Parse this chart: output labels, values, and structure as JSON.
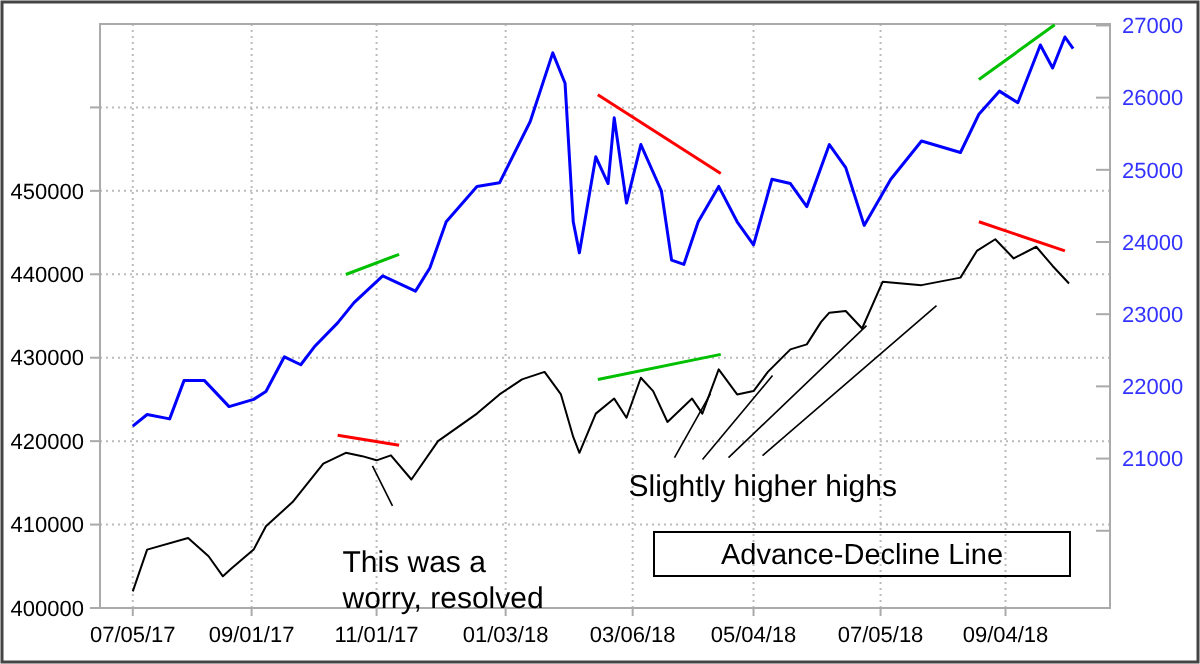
{
  "chart_data": {
    "type": "line",
    "xlim": [
      "2017-06-19",
      "2018-10-25"
    ],
    "xticks": [
      {
        "value": "2017-07-05",
        "label": "07/05/17"
      },
      {
        "value": "2017-09-01",
        "label": "09/01/17"
      },
      {
        "value": "2017-11-01",
        "label": "11/01/17"
      },
      {
        "value": "2018-01-03",
        "label": "01/03/18"
      },
      {
        "value": "2018-03-06",
        "label": "03/06/18"
      },
      {
        "value": "2018-05-04",
        "label": "05/04/18"
      },
      {
        "value": "2018-07-05",
        "label": "07/05/18"
      },
      {
        "value": "2018-09-04",
        "label": "09/04/18"
      }
    ],
    "ylim": [
      400000,
      470000
    ],
    "yticks": [
      400000,
      410000,
      420000,
      430000,
      440000,
      450000,
      {
        "value": 460000,
        "label": null
      }
    ],
    "y2lim": [
      18930,
      27020
    ],
    "y2ticks": [
      {
        "value": 20000,
        "label": null
      },
      21000,
      22000,
      23000,
      24000,
      25000,
      26000,
      27000
    ],
    "grid": true,
    "legend": "bottom right",
    "marker": "none",
    "line_style": "solid",
    "annotations": [
      {
        "text": "This was a\nworry, resolved",
        "x": "2017-10-30",
        "y": 418000
      },
      {
        "text": "Slightly higher highs",
        "x": "2018-04-13",
        "y": 425700
      }
    ],
    "series": [
      {
        "name": "Advance-Decline Line",
        "color": "#000000",
        "axis": "y",
        "x": [
          "2017-07-05",
          "2017-07-12",
          "2017-08-01",
          "2017-08-11",
          "2017-08-18",
          "2017-08-22",
          "2017-09-02",
          "2017-09-08",
          "2017-09-21",
          "2017-10-06",
          "2017-10-17",
          "2017-10-25",
          "2017-11-01",
          "2017-11-08",
          "2017-11-18",
          "2017-12-01",
          "2017-12-20",
          "2017-12-31",
          "2018-01-11",
          "2018-01-22",
          "2018-01-30",
          "2018-02-05",
          "2018-02-08",
          "2018-02-16",
          "2018-02-25",
          "2018-03-03",
          "2018-03-10",
          "2018-03-16",
          "2018-03-23",
          "2018-04-04",
          "2018-04-09",
          "2018-04-17",
          "2018-04-26",
          "2018-05-04",
          "2018-05-11",
          "2018-05-22",
          "2018-05-30",
          "2018-06-06",
          "2018-06-10",
          "2018-06-18",
          "2018-06-26",
          "2018-07-06",
          "2018-07-25",
          "2018-08-13",
          "2018-08-21",
          "2018-08-30",
          "2018-09-08",
          "2018-09-19",
          "2018-09-27",
          "2018-10-05"
        ],
        "values": [
          402000,
          407000,
          408400,
          406200,
          403800,
          404700,
          407000,
          409800,
          412700,
          417300,
          418600,
          418200,
          417700,
          418300,
          415400,
          420000,
          423300,
          425600,
          427400,
          428300,
          425600,
          420500,
          418600,
          423300,
          425100,
          422800,
          427600,
          426000,
          422300,
          425100,
          423300,
          428600,
          425600,
          426000,
          428300,
          431000,
          431600,
          434300,
          435400,
          435600,
          433500,
          439100,
          438700,
          439600,
          442800,
          444200,
          441900,
          443300,
          441000,
          438900
        ]
      },
      {
        "color": "#0000ff",
        "axis": "y2",
        "x": [
          "2017-07-05",
          "2017-07-12",
          "2017-07-23",
          "2017-07-30",
          "2017-08-09",
          "2017-08-21",
          "2017-09-02",
          "2017-09-08",
          "2017-09-17",
          "2017-09-25",
          "2017-10-02",
          "2017-10-13",
          "2017-10-21",
          "2017-11-04",
          "2017-11-20",
          "2017-11-27",
          "2017-12-05",
          "2017-12-20",
          "2017-12-31",
          "2018-01-15",
          "2018-01-26",
          "2018-02-01",
          "2018-02-05",
          "2018-02-08",
          "2018-02-16",
          "2018-02-22",
          "2018-02-25",
          "2018-03-03",
          "2018-03-10",
          "2018-03-20",
          "2018-03-25",
          "2018-03-31",
          "2018-04-07",
          "2018-04-17",
          "2018-04-26",
          "2018-05-04",
          "2018-05-13",
          "2018-05-22",
          "2018-05-30",
          "2018-06-10",
          "2018-06-18",
          "2018-06-27",
          "2018-07-10",
          "2018-07-25",
          "2018-08-13",
          "2018-08-22",
          "2018-09-01",
          "2018-09-10",
          "2018-09-21",
          "2018-09-27",
          "2018-10-03",
          "2018-10-07"
        ],
        "values": [
          21450,
          21610,
          21550,
          22080,
          22080,
          21720,
          21820,
          21930,
          22410,
          22300,
          22560,
          22880,
          23160,
          23530,
          23320,
          23640,
          24280,
          24770,
          24820,
          25670,
          26620,
          26200,
          24280,
          23850,
          25180,
          24810,
          25720,
          24540,
          25350,
          24710,
          23750,
          23690,
          24280,
          24770,
          24280,
          23960,
          24870,
          24810,
          24490,
          25350,
          25030,
          24230,
          24870,
          25400,
          25240,
          25770,
          26090,
          25930,
          26730,
          26410,
          26840,
          26680
        ]
      },
      {
        "color": "#00c000",
        "axis": "y2",
        "x": [
          "2017-10-17",
          "2017-11-12"
        ],
        "values": [
          23550,
          23830
        ]
      },
      {
        "color": "#ff0000",
        "axis": "y",
        "x": [
          "2017-10-13",
          "2017-11-12"
        ],
        "values": [
          420700,
          419500
        ]
      },
      {
        "color": "#ff0000",
        "axis": "y2",
        "x": [
          "2018-02-17",
          "2018-04-18"
        ],
        "values": [
          26040,
          24950
        ]
      },
      {
        "color": "#00c000",
        "axis": "y",
        "x": [
          "2018-02-17",
          "2018-04-18"
        ],
        "values": [
          427400,
          430400
        ]
      },
      {
        "color": "#00c000",
        "axis": "y2",
        "x": [
          "2018-08-22",
          "2018-09-28"
        ],
        "values": [
          26250,
          27010
        ]
      },
      {
        "color": "#ff0000",
        "axis": "y",
        "x": [
          "2018-08-22",
          "2018-10-03"
        ],
        "values": [
          446300,
          442800
        ]
      }
    ]
  }
}
